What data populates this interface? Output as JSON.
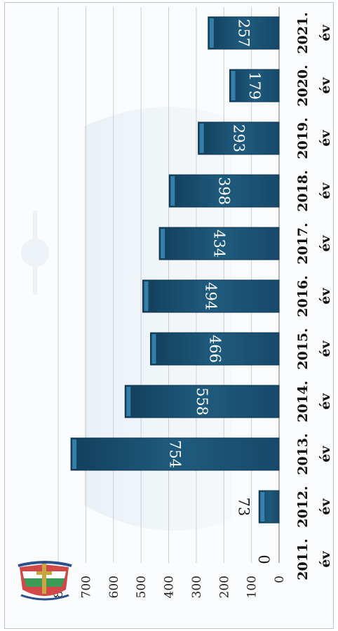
{
  "chart_data": {
    "type": "bar",
    "orientation": "rotated-90",
    "categories": [
      "2011.",
      "2012.",
      "2013.",
      "2014.",
      "2015.",
      "2016.",
      "2017.",
      "2018.",
      "2019.",
      "2020.",
      "2021."
    ],
    "category_suffix": "év",
    "values": [
      0,
      73,
      754,
      558,
      466,
      494,
      434,
      398,
      293,
      179,
      257
    ],
    "value_labels": [
      "0",
      "73",
      "754",
      "558",
      "466",
      "494",
      "434",
      "398",
      "293",
      "179",
      "257"
    ],
    "ylim": [
      0,
      800
    ],
    "yticks": [
      "0",
      "100",
      "200",
      "300",
      "400",
      "500",
      "600",
      "700",
      "800"
    ],
    "gridlines": true,
    "bar_color": "#1f5b7e",
    "bar_highlight": "#3d8fbb",
    "title": "",
    "xlabel": "",
    "ylabel": ""
  }
}
